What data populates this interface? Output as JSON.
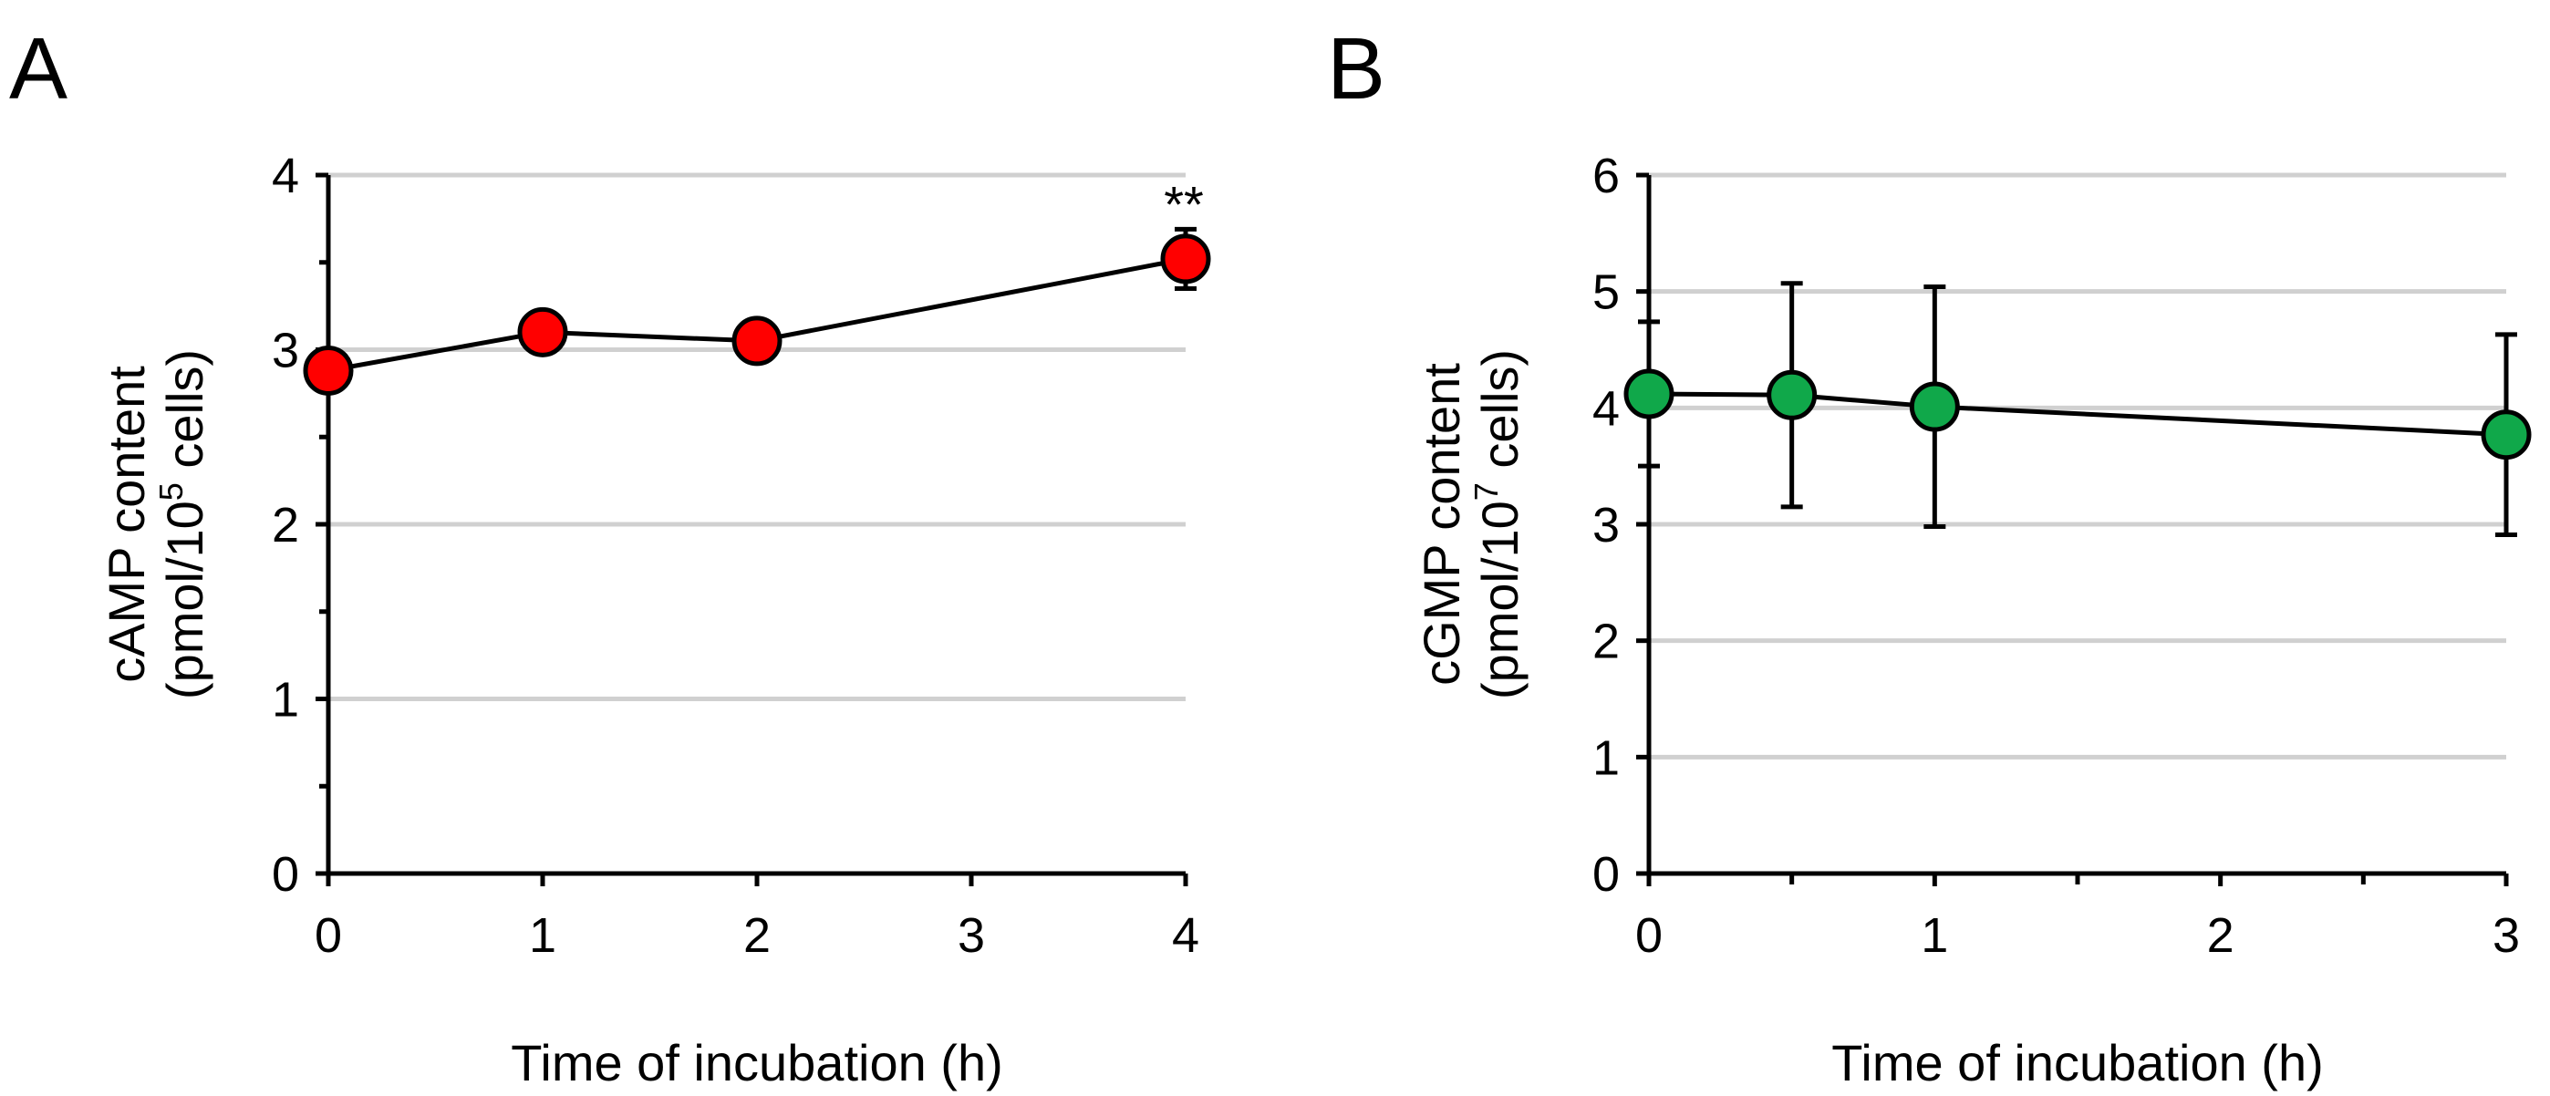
{
  "chart_data": [
    {
      "type": "line",
      "panel_label": "A",
      "xlabel": "Time of incubation (h)",
      "ylabel_line1": "cAMP content",
      "ylabel_line2_prefix": "(pmol/10",
      "ylabel_line2_sup": "5",
      "ylabel_line2_suffix": " cells)",
      "xlim": [
        0,
        4
      ],
      "ylim": [
        0,
        4
      ],
      "xticks": [
        0,
        1,
        2,
        3,
        4
      ],
      "yticks": [
        0,
        1,
        2,
        3,
        4
      ],
      "grid": true,
      "marker_color": "#ff0000",
      "series": [
        {
          "x": [
            0,
            1,
            2,
            4
          ],
          "y": [
            2.88,
            3.1,
            3.05,
            3.52
          ],
          "err": [
            0.05,
            0.05,
            0.1,
            0.17
          ]
        }
      ],
      "annotations": [
        {
          "x": 4,
          "y": 3.52,
          "text": "**"
        }
      ]
    },
    {
      "type": "line",
      "panel_label": "B",
      "xlabel": "Time of incubation (h)",
      "ylabel_line1": "cGMP content",
      "ylabel_line2_prefix": "(pmol/10",
      "ylabel_line2_sup": "7",
      "ylabel_line2_suffix": " cells)",
      "xlim": [
        0,
        3
      ],
      "ylim": [
        0,
        6
      ],
      "xticks": [
        0,
        1,
        2,
        3
      ],
      "xminor": [
        0.5,
        1.5,
        2.5
      ],
      "yticks": [
        0,
        1,
        2,
        3,
        4,
        5,
        6
      ],
      "grid": true,
      "marker_color": "#10a84a",
      "series": [
        {
          "x": [
            0,
            0.5,
            1,
            3
          ],
          "y": [
            4.12,
            4.11,
            4.01,
            3.77
          ],
          "err": [
            0.62,
            0.96,
            1.03,
            0.86
          ]
        }
      ],
      "annotations": []
    }
  ]
}
